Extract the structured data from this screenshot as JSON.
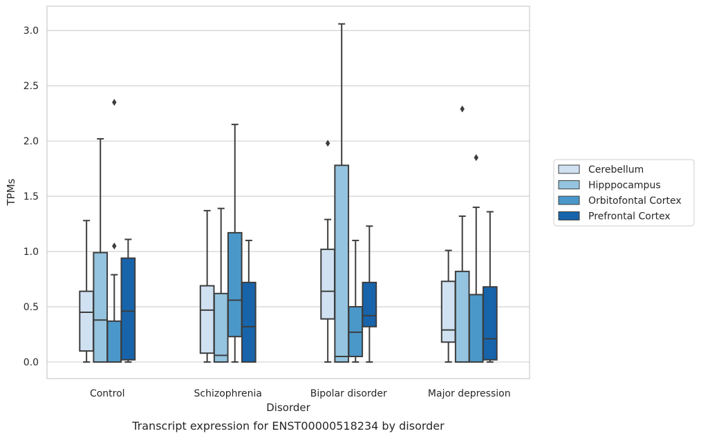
{
  "chart_data": {
    "type": "box",
    "caption": "Transcript expression for ENST00000518234 by disorder",
    "xlabel": "Disorder",
    "ylabel": "TPMs",
    "ylim": [
      -0.15,
      3.22
    ],
    "yticks": [
      0.0,
      0.5,
      1.0,
      1.5,
      2.0,
      2.5,
      3.0
    ],
    "ytick_labels": [
      "0.0",
      "0.5",
      "1.0",
      "1.5",
      "2.0",
      "2.5",
      "3.0"
    ],
    "grid": "horizontal",
    "legend_position": "right",
    "categories": [
      "Control",
      "Schizophrenia",
      "Bipolar disorder",
      "Major depression"
    ],
    "series": [
      {
        "name": "Cerebellum",
        "color": "#d0e1f2",
        "boxes": [
          {
            "whisker_low": 0.0,
            "q1": 0.1,
            "median": 0.45,
            "q3": 0.64,
            "whisker_high": 1.28,
            "outliers": []
          },
          {
            "whisker_low": 0.0,
            "q1": 0.08,
            "median": 0.47,
            "q3": 0.69,
            "whisker_high": 1.37,
            "outliers": []
          },
          {
            "whisker_low": 0.0,
            "q1": 0.39,
            "median": 0.64,
            "q3": 1.02,
            "whisker_high": 1.29,
            "outliers": [
              1.98
            ]
          },
          {
            "whisker_low": 0.0,
            "q1": 0.18,
            "median": 0.29,
            "q3": 0.73,
            "whisker_high": 1.01,
            "outliers": []
          }
        ]
      },
      {
        "name": "Hipppocampus",
        "color": "#94c4df",
        "boxes": [
          {
            "whisker_low": 0.0,
            "q1": 0.0,
            "median": 0.38,
            "q3": 0.99,
            "whisker_high": 2.02,
            "outliers": []
          },
          {
            "whisker_low": 0.0,
            "q1": 0.0,
            "median": 0.06,
            "q3": 0.62,
            "whisker_high": 1.39,
            "outliers": []
          },
          {
            "whisker_low": 0.0,
            "q1": 0.0,
            "median": 0.05,
            "q3": 1.78,
            "whisker_high": 3.06,
            "outliers": []
          },
          {
            "whisker_low": 0.0,
            "q1": 0.0,
            "median": 0.0,
            "q3": 0.82,
            "whisker_high": 1.32,
            "outliers": [
              2.29
            ]
          }
        ]
      },
      {
        "name": "Orbitofontal Cortex",
        "color": "#4a98c9",
        "boxes": [
          {
            "whisker_low": 0.0,
            "q1": 0.0,
            "median": 0.0,
            "q3": 0.37,
            "whisker_high": 0.79,
            "outliers": [
              1.05,
              2.35
            ]
          },
          {
            "whisker_low": 0.0,
            "q1": 0.23,
            "median": 0.56,
            "q3": 1.17,
            "whisker_high": 2.15,
            "outliers": []
          },
          {
            "whisker_low": 0.0,
            "q1": 0.05,
            "median": 0.27,
            "q3": 0.5,
            "whisker_high": 1.1,
            "outliers": []
          },
          {
            "whisker_low": 0.0,
            "q1": 0.0,
            "median": 0.0,
            "q3": 0.61,
            "whisker_high": 1.4,
            "outliers": [
              1.85
            ]
          }
        ]
      },
      {
        "name": "Prefrontal Cortex",
        "color": "#1764ab",
        "boxes": [
          {
            "whisker_low": 0.0,
            "q1": 0.02,
            "median": 0.46,
            "q3": 0.94,
            "whisker_high": 1.11,
            "outliers": []
          },
          {
            "whisker_low": 0.0,
            "q1": 0.0,
            "median": 0.32,
            "q3": 0.72,
            "whisker_high": 1.1,
            "outliers": []
          },
          {
            "whisker_low": 0.0,
            "q1": 0.32,
            "median": 0.42,
            "q3": 0.72,
            "whisker_high": 1.23,
            "outliers": []
          },
          {
            "whisker_low": 0.0,
            "q1": 0.02,
            "median": 0.21,
            "q3": 0.68,
            "whisker_high": 1.36,
            "outliers": []
          }
        ]
      }
    ]
  }
}
